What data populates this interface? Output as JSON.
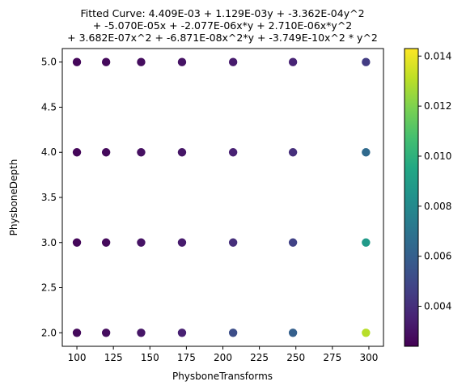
{
  "chart_data": {
    "type": "scatter",
    "title_lines": [
      "Fitted Curve: 4.409E-03 + 1.129E-03y + -3.362E-04y^2",
      "+ -5.070E-05x + -2.077E-06x*y + 2.710E-06x*y^2",
      "+ 3.682E-07x^2 + -6.871E-08x^2*y + -3.749E-10x^2 * y^2"
    ],
    "xlabel": "PhysboneTransforms",
    "ylabel": "PhysboneDepth",
    "xlim": [
      90,
      310
    ],
    "ylim": [
      1.85,
      5.15
    ],
    "x_ticks": [
      100,
      125,
      150,
      175,
      200,
      225,
      250,
      275,
      300
    ],
    "y_ticks": [
      2.0,
      2.5,
      3.0,
      3.5,
      4.0,
      4.5,
      5.0
    ],
    "y_tick_labels": [
      "2.0",
      "2.5",
      "3.0",
      "3.5",
      "4.0",
      "4.5",
      "5.0"
    ],
    "colorbar": {
      "colormap": "viridis",
      "min": 0.0024,
      "max": 0.0143,
      "ticks": [
        0.004,
        0.006,
        0.008,
        0.01,
        0.012,
        0.014
      ],
      "tick_labels": [
        "0.004",
        "0.006",
        "0.008",
        "0.010",
        "0.012",
        "0.014"
      ]
    },
    "points": [
      {
        "x": 100,
        "y": 5,
        "v": 0.0026
      },
      {
        "x": 120,
        "y": 5,
        "v": 0.0027
      },
      {
        "x": 144,
        "y": 5,
        "v": 0.0028
      },
      {
        "x": 172,
        "y": 5,
        "v": 0.003
      },
      {
        "x": 207,
        "y": 5,
        "v": 0.0033
      },
      {
        "x": 248,
        "y": 5,
        "v": 0.0036
      },
      {
        "x": 298,
        "y": 5,
        "v": 0.0045
      },
      {
        "x": 100,
        "y": 4,
        "v": 0.0026
      },
      {
        "x": 120,
        "y": 4,
        "v": 0.0027
      },
      {
        "x": 144,
        "y": 4,
        "v": 0.0029
      },
      {
        "x": 172,
        "y": 4,
        "v": 0.0031
      },
      {
        "x": 207,
        "y": 4,
        "v": 0.0035
      },
      {
        "x": 248,
        "y": 4,
        "v": 0.004
      },
      {
        "x": 298,
        "y": 4,
        "v": 0.0065
      },
      {
        "x": 100,
        "y": 3,
        "v": 0.0026
      },
      {
        "x": 120,
        "y": 3,
        "v": 0.0027
      },
      {
        "x": 144,
        "y": 3,
        "v": 0.003
      },
      {
        "x": 172,
        "y": 3,
        "v": 0.0033
      },
      {
        "x": 207,
        "y": 3,
        "v": 0.004
      },
      {
        "x": 248,
        "y": 3,
        "v": 0.0047
      },
      {
        "x": 298,
        "y": 3,
        "v": 0.0088
      },
      {
        "x": 100,
        "y": 2,
        "v": 0.0027
      },
      {
        "x": 120,
        "y": 2,
        "v": 0.0028
      },
      {
        "x": 144,
        "y": 2,
        "v": 0.0031
      },
      {
        "x": 172,
        "y": 2,
        "v": 0.0035
      },
      {
        "x": 207,
        "y": 2,
        "v": 0.0052
      },
      {
        "x": 248,
        "y": 2,
        "v": 0.006
      },
      {
        "x": 298,
        "y": 2,
        "v": 0.013
      }
    ]
  }
}
